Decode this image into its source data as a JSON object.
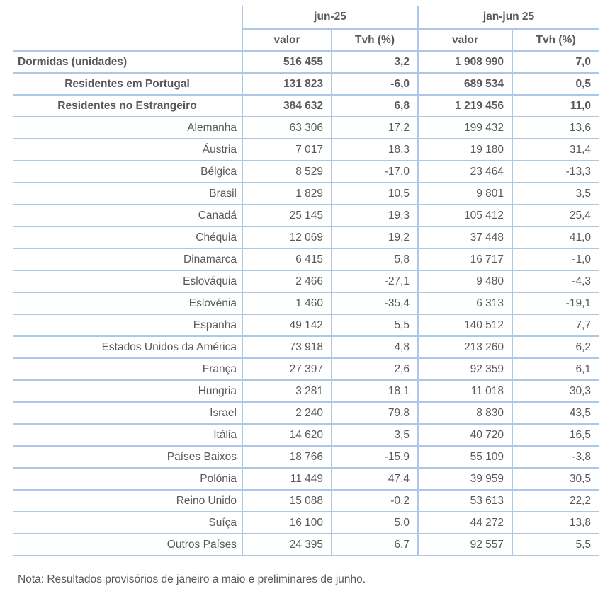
{
  "colors": {
    "border": "#adc8e6",
    "text": "#595959"
  },
  "table": {
    "col_groups": [
      {
        "label": "jun-25"
      },
      {
        "label": "jan-jun 25"
      }
    ],
    "sub_headers": [
      "valor",
      "Tvh (%)",
      "valor",
      "Tvh (%)"
    ],
    "rows": [
      {
        "label": "Dormidas (unidades)",
        "style": "total",
        "values": [
          "516 455",
          "3,2",
          "1 908 990",
          "7,0"
        ]
      },
      {
        "label": "Residentes em Portugal",
        "style": "subtotal",
        "values": [
          "131 823",
          "-6,0",
          "689 534",
          "0,5"
        ]
      },
      {
        "label": "Residentes no Estrangeiro",
        "style": "subtotal",
        "values": [
          "384 632",
          "6,8",
          "1 219 456",
          "11,0"
        ]
      },
      {
        "label": "Alemanha",
        "style": "country",
        "values": [
          "63 306",
          "17,2",
          "199 432",
          "13,6"
        ]
      },
      {
        "label": "Áustria",
        "style": "country",
        "values": [
          "7 017",
          "18,3",
          "19 180",
          "31,4"
        ]
      },
      {
        "label": "Bélgica",
        "style": "country",
        "values": [
          "8 529",
          "-17,0",
          "23 464",
          "-13,3"
        ]
      },
      {
        "label": "Brasil",
        "style": "country",
        "values": [
          "1 829",
          "10,5",
          "9 801",
          "3,5"
        ]
      },
      {
        "label": "Canadá",
        "style": "country",
        "values": [
          "25 145",
          "19,3",
          "105 412",
          "25,4"
        ]
      },
      {
        "label": "Chéquia",
        "style": "country",
        "values": [
          "12 069",
          "19,2",
          "37 448",
          "41,0"
        ]
      },
      {
        "label": "Dinamarca",
        "style": "country",
        "values": [
          "6 415",
          "5,8",
          "16 717",
          "-1,0"
        ]
      },
      {
        "label": "Eslováquia",
        "style": "country",
        "values": [
          "2 466",
          "-27,1",
          "9 480",
          "-4,3"
        ]
      },
      {
        "label": "Eslovénia",
        "style": "country",
        "values": [
          "1 460",
          "-35,4",
          "6 313",
          "-19,1"
        ]
      },
      {
        "label": "Espanha",
        "style": "country",
        "values": [
          "49 142",
          "5,5",
          "140 512",
          "7,7"
        ]
      },
      {
        "label": "Estados Unidos da América",
        "style": "country",
        "values": [
          "73 918",
          "4,8",
          "213 260",
          "6,2"
        ]
      },
      {
        "label": "França",
        "style": "country",
        "values": [
          "27 397",
          "2,6",
          "92 359",
          "6,1"
        ]
      },
      {
        "label": "Hungria",
        "style": "country",
        "values": [
          "3 281",
          "18,1",
          "11 018",
          "30,3"
        ]
      },
      {
        "label": "Israel",
        "style": "country",
        "values": [
          "2 240",
          "79,8",
          "8 830",
          "43,5"
        ]
      },
      {
        "label": "Itália",
        "style": "country",
        "values": [
          "14 620",
          "3,5",
          "40 720",
          "16,5"
        ]
      },
      {
        "label": "Países Baixos",
        "style": "country",
        "values": [
          "18 766",
          "-15,9",
          "55 109",
          "-3,8"
        ]
      },
      {
        "label": "Polónia",
        "style": "country",
        "values": [
          "11 449",
          "47,4",
          "39 959",
          "30,5"
        ]
      },
      {
        "label": "Reino Unido",
        "style": "country",
        "values": [
          "15 088",
          "-0,2",
          "53 613",
          "22,2"
        ]
      },
      {
        "label": "Suíça",
        "style": "country",
        "values": [
          "16 100",
          "5,0",
          "44 272",
          "13,8"
        ]
      },
      {
        "label": "Outros Países",
        "style": "country",
        "values": [
          "24 395",
          "6,7",
          "92 557",
          "5,5"
        ]
      }
    ],
    "note": "Nota: Resultados provisórios de janeiro a maio e preliminares de junho."
  }
}
